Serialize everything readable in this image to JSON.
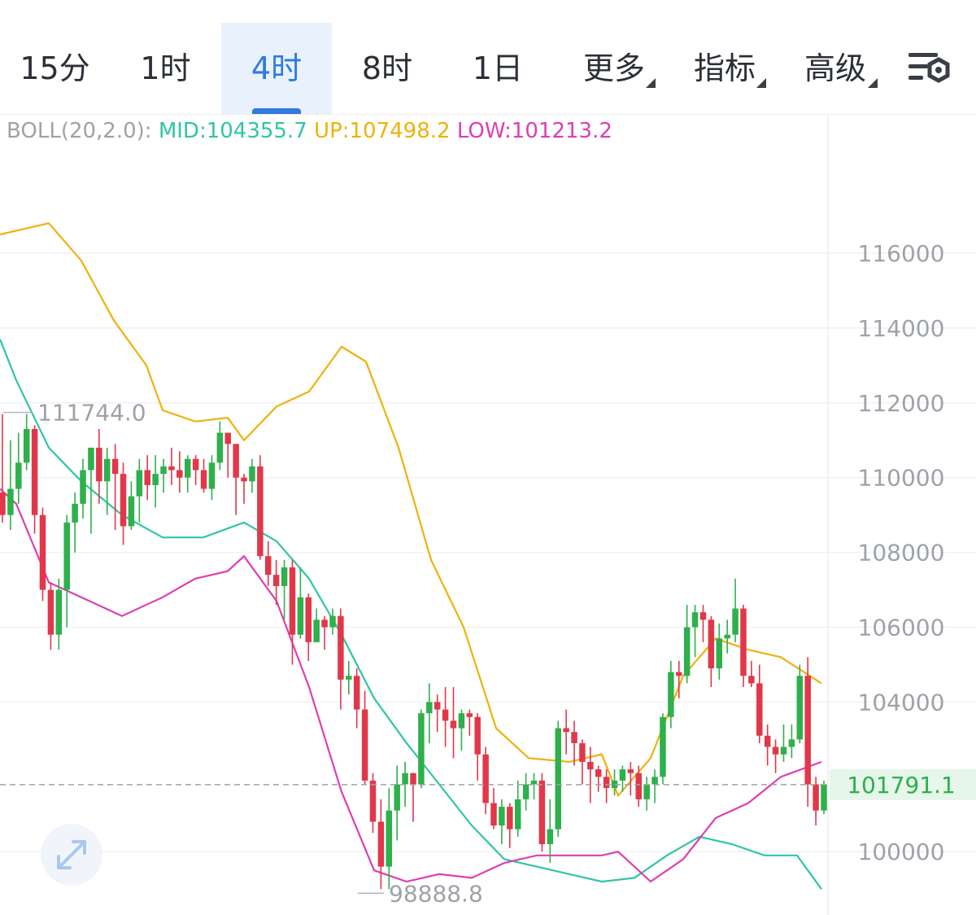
{
  "tabs": [
    {
      "label": "15分",
      "active": false,
      "has_menu": false
    },
    {
      "label": "1时",
      "active": false,
      "has_menu": false
    },
    {
      "label": "4时",
      "active": true,
      "has_menu": false
    },
    {
      "label": "8时",
      "active": false,
      "has_menu": false
    },
    {
      "label": "1日",
      "active": false,
      "has_menu": false
    },
    {
      "label": "更多",
      "active": false,
      "has_menu": true
    },
    {
      "label": "指标",
      "active": false,
      "has_menu": true
    },
    {
      "label": "高级",
      "active": false,
      "has_menu": true
    }
  ],
  "settings_icon": "chart-settings-icon",
  "expand_icon": "expand-arrows-icon",
  "legend": {
    "name": "BOLL(20,2.0):",
    "mid": "MID:104355.7",
    "up": "UP:107498.2",
    "low": "LOW:101213.2"
  },
  "colors": {
    "up_candle": "#2eb04c",
    "down_candle": "#e0384a",
    "mid": "#2fc5a7",
    "upper": "#f0b10c",
    "lower": "#dd3fb1",
    "last_price_bg": "#e6f6ea",
    "last_price_text": "#2eb04c"
  },
  "chart_data": {
    "type": "candlestick",
    "indicator": "BOLL(20,2.0)",
    "y_ticks": [
      "116000",
      "114000",
      "112000",
      "110000",
      "108000",
      "106000",
      "104000",
      "100000"
    ],
    "y_range": [
      98300,
      117300
    ],
    "high_label": "111744.0",
    "low_label": "98888.8",
    "last_price": "101791.1",
    "last_price_value": 101791.1,
    "candles": [
      [
        109600,
        109000,
        111700,
        108800
      ],
      [
        109000,
        109700,
        111000,
        108600
      ],
      [
        109700,
        110400,
        111200,
        109300
      ],
      [
        110400,
        111300,
        111700,
        110200
      ],
      [
        111300,
        109000,
        111400,
        108500
      ],
      [
        109000,
        107000,
        109200,
        106700
      ],
      [
        107000,
        105800,
        107200,
        105400
      ],
      [
        105800,
        107000,
        107300,
        105400
      ],
      [
        107000,
        108800,
        109000,
        106000
      ],
      [
        108800,
        109300,
        109600,
        108000
      ],
      [
        109300,
        110200,
        110500,
        108900
      ],
      [
        110200,
        110800,
        110800,
        108500
      ],
      [
        110800,
        109900,
        111300,
        109300
      ],
      [
        109900,
        110500,
        110800,
        109000
      ],
      [
        110500,
        110100,
        110900,
        108600
      ],
      [
        110100,
        108700,
        110400,
        108200
      ],
      [
        108700,
        109500,
        109900,
        108600
      ],
      [
        109500,
        110200,
        110500,
        108800
      ],
      [
        110200,
        109800,
        110600,
        109400
      ],
      [
        109800,
        110100,
        110600,
        109200
      ],
      [
        110100,
        110300,
        110500,
        109600
      ],
      [
        110300,
        110200,
        110800,
        109800
      ],
      [
        110200,
        110000,
        110700,
        109600
      ],
      [
        110000,
        110500,
        110600,
        109600
      ],
      [
        110500,
        110200,
        110600,
        109800
      ],
      [
        110200,
        109700,
        110500,
        109600
      ],
      [
        109700,
        110400,
        110600,
        109400
      ],
      [
        110400,
        111200,
        111500,
        110200
      ],
      [
        111200,
        110900,
        111200,
        110000
      ],
      [
        110900,
        110000,
        110900,
        109000
      ],
      [
        110000,
        109900,
        110100,
        109300
      ],
      [
        109900,
        110300,
        110500,
        109600
      ],
      [
        110300,
        107900,
        110600,
        107800
      ],
      [
        107900,
        107400,
        108300,
        107100
      ],
      [
        107400,
        107100,
        107800,
        106600
      ],
      [
        107100,
        107600,
        107800,
        106200
      ],
      [
        107600,
        105800,
        107800,
        105000
      ],
      [
        105800,
        106800,
        107600,
        105700
      ],
      [
        106800,
        105600,
        106900,
        105100
      ],
      [
        105600,
        106200,
        106500,
        105600
      ],
      [
        106200,
        106000,
        106300,
        105400
      ],
      [
        106000,
        106300,
        106500,
        105800
      ],
      [
        106300,
        104600,
        106500,
        103800
      ],
      [
        104600,
        104700,
        105100,
        104200
      ],
      [
        104700,
        103800,
        104900,
        103300
      ],
      [
        103800,
        101900,
        104300,
        101800
      ],
      [
        101900,
        100800,
        102100,
        100500
      ],
      [
        100800,
        99600,
        101400,
        99000
      ],
      [
        99600,
        101100,
        101700,
        99000
      ],
      [
        101100,
        101800,
        102300,
        100300
      ],
      [
        101800,
        102100,
        102400,
        101200
      ],
      [
        102100,
        101800,
        102100,
        100800
      ],
      [
        101800,
        103700,
        103800,
        101700
      ],
      [
        103700,
        104000,
        104500,
        102900
      ],
      [
        104000,
        103800,
        104200,
        103200
      ],
      [
        103800,
        103500,
        104400,
        102800
      ],
      [
        103500,
        103300,
        104400,
        102500
      ],
      [
        103300,
        103700,
        103800,
        102700
      ],
      [
        103700,
        103600,
        103800,
        103100
      ],
      [
        103600,
        102600,
        103700,
        101900
      ],
      [
        102600,
        101300,
        102800,
        101000
      ],
      [
        101300,
        100700,
        101700,
        100600
      ],
      [
        100700,
        101200,
        101400,
        100200
      ],
      [
        101200,
        100600,
        101300,
        100100
      ],
      [
        100600,
        101400,
        101900,
        100400
      ],
      [
        101400,
        101800,
        102100,
        101100
      ],
      [
        101800,
        101900,
        102100,
        101400
      ],
      [
        101900,
        100200,
        102100,
        100000
      ],
      [
        100200,
        100600,
        101400,
        99700
      ],
      [
        100600,
        103300,
        103500,
        100400
      ],
      [
        103300,
        103200,
        103800,
        102600
      ],
      [
        103200,
        102900,
        103500,
        102300
      ],
      [
        102900,
        102400,
        103000,
        101800
      ],
      [
        102400,
        102200,
        102800,
        101300
      ],
      [
        102200,
        102000,
        102300,
        101600
      ],
      [
        102000,
        101700,
        102200,
        101300
      ],
      [
        101700,
        101900,
        102200,
        101500
      ],
      [
        101900,
        102200,
        102300,
        101600
      ],
      [
        102200,
        102100,
        102400,
        101500
      ],
      [
        102100,
        101400,
        102300,
        101200
      ],
      [
        101400,
        101800,
        102000,
        101100
      ],
      [
        101800,
        102000,
        102200,
        101300
      ],
      [
        102000,
        103600,
        103700,
        101800
      ],
      [
        103600,
        104800,
        105100,
        103300
      ],
      [
        104800,
        104700,
        105100,
        104100
      ],
      [
        104700,
        106000,
        106600,
        104500
      ],
      [
        106000,
        106400,
        106600,
        105200
      ],
      [
        106400,
        106200,
        106600,
        105600
      ],
      [
        106200,
        104900,
        106300,
        104400
      ],
      [
        104900,
        105700,
        106100,
        104600
      ],
      [
        105700,
        105800,
        106200,
        105300
      ],
      [
        105800,
        106500,
        107300,
        105600
      ],
      [
        106500,
        104700,
        106600,
        104400
      ],
      [
        104700,
        104500,
        105100,
        104400
      ],
      [
        104500,
        103100,
        105000,
        102900
      ],
      [
        103100,
        102800,
        103400,
        102300
      ],
      [
        102800,
        102600,
        103000,
        102100
      ],
      [
        102600,
        102800,
        103400,
        102400
      ],
      [
        102800,
        103000,
        103400,
        102500
      ],
      [
        103000,
        104700,
        105000,
        102900
      ],
      [
        104700,
        101800,
        105200,
        101200
      ],
      [
        101800,
        101100,
        102000,
        100700
      ],
      [
        101100,
        101800,
        101900,
        101000
      ]
    ],
    "boll_mid": [
      [
        0,
        113700
      ],
      [
        20,
        112600
      ],
      [
        60,
        110800
      ],
      [
        100,
        109900
      ],
      [
        150,
        109000
      ],
      [
        200,
        108400
      ],
      [
        250,
        108400
      ],
      [
        300,
        108800
      ],
      [
        340,
        108300
      ],
      [
        380,
        107300
      ],
      [
        420,
        105800
      ],
      [
        460,
        104100
      ],
      [
        500,
        102900
      ],
      [
        540,
        101800
      ],
      [
        580,
        100700
      ],
      [
        620,
        99800
      ],
      [
        660,
        99600
      ],
      [
        700,
        99400
      ],
      [
        740,
        99200
      ],
      [
        780,
        99300
      ],
      [
        820,
        99900
      ],
      [
        860,
        100400
      ],
      [
        900,
        100200
      ],
      [
        940,
        99900
      ],
      [
        980,
        99900
      ],
      [
        1010,
        99000
      ]
    ],
    "boll_upper": [
      [
        0,
        116500
      ],
      [
        60,
        116800
      ],
      [
        100,
        115800
      ],
      [
        140,
        114200
      ],
      [
        180,
        113000
      ],
      [
        200,
        111800
      ],
      [
        240,
        111500
      ],
      [
        280,
        111600
      ],
      [
        300,
        111000
      ],
      [
        340,
        111900
      ],
      [
        380,
        112300
      ],
      [
        420,
        113500
      ],
      [
        450,
        113100
      ],
      [
        490,
        110800
      ],
      [
        530,
        107800
      ],
      [
        570,
        106000
      ],
      [
        610,
        103300
      ],
      [
        650,
        102500
      ],
      [
        700,
        102400
      ],
      [
        740,
        102600
      ],
      [
        760,
        101500
      ],
      [
        800,
        102500
      ],
      [
        840,
        104700
      ],
      [
        880,
        105700
      ],
      [
        920,
        105400
      ],
      [
        960,
        105200
      ],
      [
        1010,
        104500
      ]
    ],
    "boll_lower": [
      [
        0,
        109700
      ],
      [
        20,
        109300
      ],
      [
        60,
        107200
      ],
      [
        100,
        106800
      ],
      [
        150,
        106300
      ],
      [
        200,
        106800
      ],
      [
        240,
        107300
      ],
      [
        280,
        107500
      ],
      [
        300,
        107900
      ],
      [
        340,
        106700
      ],
      [
        380,
        104400
      ],
      [
        420,
        101600
      ],
      [
        460,
        99500
      ],
      [
        500,
        99200
      ],
      [
        540,
        99400
      ],
      [
        580,
        99300
      ],
      [
        620,
        99700
      ],
      [
        660,
        99900
      ],
      [
        700,
        99900
      ],
      [
        740,
        99900
      ],
      [
        760,
        100000
      ],
      [
        800,
        99200
      ],
      [
        840,
        99800
      ],
      [
        880,
        100900
      ],
      [
        920,
        101300
      ],
      [
        960,
        102000
      ],
      [
        1010,
        102400
      ]
    ]
  }
}
